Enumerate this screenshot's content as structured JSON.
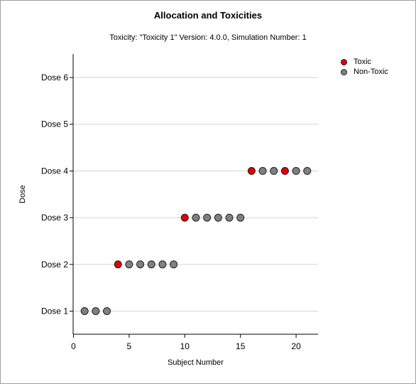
{
  "chart_data": {
    "type": "scatter",
    "title": "Allocation and Toxicities",
    "subtitle": "Toxicity: \"Toxicity 1\" Version: 4.0.0, Simulation Number: 1",
    "xlabel": "Subject Number",
    "ylabel": "Dose",
    "xlim": [
      0,
      22
    ],
    "xticks": [
      0,
      5,
      10,
      15,
      20
    ],
    "categories": [
      "Dose 1",
      "Dose 2",
      "Dose 3",
      "Dose 4",
      "Dose 5",
      "Dose 6"
    ],
    "grid": "horizontal",
    "legend_position": "top-right",
    "series": [
      {
        "name": "Toxic",
        "color": "#e00000",
        "points": [
          {
            "x": 4,
            "y": "Dose 2"
          },
          {
            "x": 10,
            "y": "Dose 3"
          },
          {
            "x": 16,
            "y": "Dose 4"
          },
          {
            "x": 19,
            "y": "Dose 4"
          }
        ]
      },
      {
        "name": "Non-Toxic",
        "color": "#808080",
        "points": [
          {
            "x": 1,
            "y": "Dose 1"
          },
          {
            "x": 2,
            "y": "Dose 1"
          },
          {
            "x": 3,
            "y": "Dose 1"
          },
          {
            "x": 5,
            "y": "Dose 2"
          },
          {
            "x": 6,
            "y": "Dose 2"
          },
          {
            "x": 7,
            "y": "Dose 2"
          },
          {
            "x": 8,
            "y": "Dose 2"
          },
          {
            "x": 9,
            "y": "Dose 2"
          },
          {
            "x": 11,
            "y": "Dose 3"
          },
          {
            "x": 12,
            "y": "Dose 3"
          },
          {
            "x": 13,
            "y": "Dose 3"
          },
          {
            "x": 14,
            "y": "Dose 3"
          },
          {
            "x": 15,
            "y": "Dose 3"
          },
          {
            "x": 17,
            "y": "Dose 4"
          },
          {
            "x": 18,
            "y": "Dose 4"
          },
          {
            "x": 20,
            "y": "Dose 4"
          },
          {
            "x": 21,
            "y": "Dose 4"
          }
        ]
      }
    ]
  }
}
